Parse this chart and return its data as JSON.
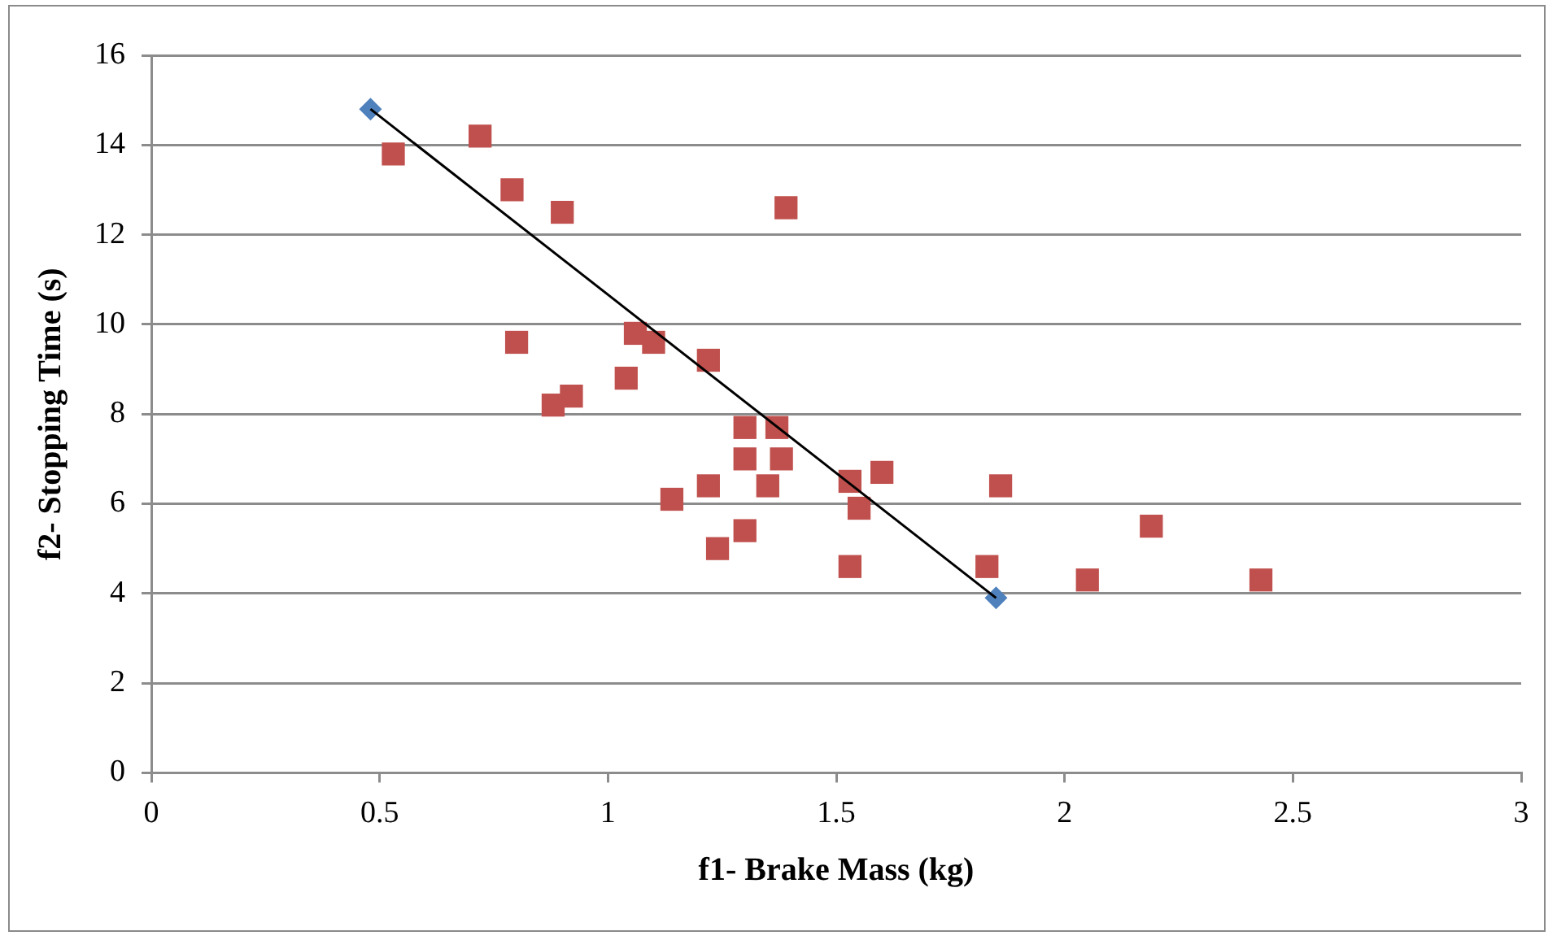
{
  "chart_data": {
    "type": "scatter",
    "xlabel": "f1- Brake Mass (kg)",
    "ylabel": "f2- Stopping Time (s)",
    "xlim": [
      0,
      3
    ],
    "xticks": [
      0,
      0.5,
      1,
      1.5,
      2,
      2.5,
      3
    ],
    "ylim": [
      0,
      16
    ],
    "yticks": [
      0,
      2,
      4,
      6,
      8,
      10,
      12,
      14,
      16
    ],
    "grid": "y",
    "legend": false,
    "series": [
      {
        "marker": "square",
        "color": "#c0504d",
        "x": [
          0.53,
          0.72,
          0.79,
          0.9,
          0.8,
          0.88,
          0.92,
          1.04,
          1.06,
          1.1,
          1.22,
          1.14,
          1.22,
          1.24,
          1.3,
          1.3,
          1.37,
          1.3,
          1.38,
          1.35,
          1.39,
          1.53,
          1.6,
          1.55,
          1.53,
          1.86,
          1.83,
          2.05,
          2.19,
          2.43
        ],
        "values": [
          13.8,
          14.2,
          13,
          12.5,
          9.6,
          8.2,
          8.4,
          8.8,
          9.8,
          9.6,
          9.2,
          6.1,
          6.4,
          5,
          5.4,
          7.7,
          7.7,
          7,
          7,
          6.4,
          12.6,
          6.5,
          6.7,
          5.9,
          4.6,
          6.4,
          4.6,
          4.3,
          5.5,
          4.3
        ]
      },
      {
        "marker": "diamond",
        "color": "#4f81bd",
        "x": [
          0.48,
          1.85
        ],
        "values": [
          14.8,
          3.9
        ]
      },
      {
        "type": "line",
        "marker": "none",
        "color": "#000000",
        "x": [
          0.48,
          1.85
        ],
        "values": [
          14.8,
          3.9
        ]
      }
    ]
  }
}
